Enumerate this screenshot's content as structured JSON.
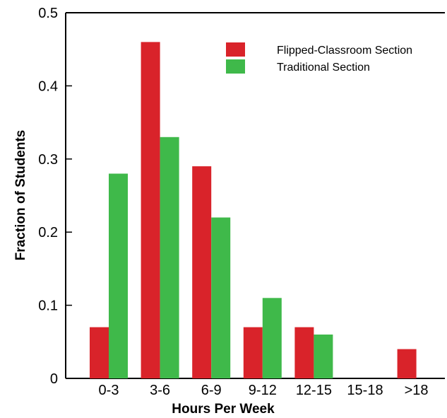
{
  "chart_data": {
    "type": "bar",
    "title": "",
    "xlabel": "Hours Per Week",
    "ylabel": "Fraction of Students",
    "categories": [
      "0-3",
      "3-6",
      "6-9",
      "9-12",
      "12-15",
      "15-18",
      ">18"
    ],
    "series": [
      {
        "name": "Flipped-Classroom Section",
        "color": "#d9232a",
        "values": [
          0.07,
          0.46,
          0.29,
          0.07,
          0.07,
          0,
          0.04
        ]
      },
      {
        "name": "Traditional Section",
        "color": "#3fb94a",
        "values": [
          0.28,
          0.33,
          0.22,
          0.11,
          0.06,
          0,
          0
        ]
      }
    ],
    "ylim": [
      0,
      0.5
    ],
    "yticks": [
      0,
      0.1,
      0.2,
      0.3,
      0.4,
      0.5
    ],
    "ytick_labels": [
      "0",
      "0.1",
      "0.2",
      "0.3",
      "0.4",
      "0.5"
    ],
    "grid": false,
    "legend_position": "top-right"
  }
}
